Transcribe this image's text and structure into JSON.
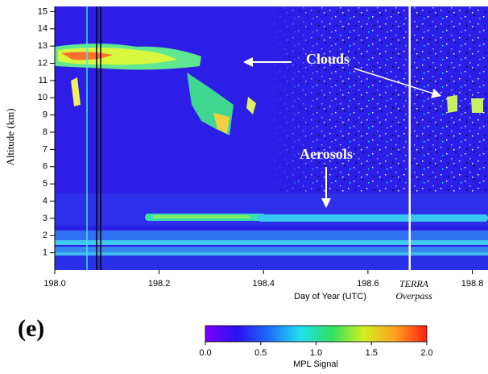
{
  "chart_data": {
    "type": "heatmap",
    "xlabel": "Day of Year  (UTC)",
    "ylabel": "Altitude (km)",
    "xlim": [
      198.0,
      198.83
    ],
    "xticks": [
      {
        "value": 198.0,
        "label": "198.0"
      },
      198.2,
      198.4,
      198.6,
      198.8
    ],
    "ylim": [
      0,
      15.3
    ],
    "yticks": [
      1,
      2,
      3,
      4,
      5,
      6,
      7,
      8,
      9,
      10,
      11,
      12,
      13,
      14,
      15
    ],
    "overpass": {
      "x": 198.68,
      "label_line1": "TERRA",
      "label_line2": "Overpass",
      "color": "#ffffff"
    },
    "annotations": {
      "clouds": "Clouds",
      "aerosols": "Aerosols"
    },
    "panel_label": "(e)",
    "colorbar": {
      "label": "MPL Signal",
      "lim": [
        0,
        2
      ],
      "ticks": [
        {
          "value": 0,
          "label": "0.0"
        },
        {
          "value": 0.5,
          "label": "0.5"
        },
        {
          "value": 1,
          "label": "1.0"
        },
        {
          "value": 1.5,
          "label": "1.5"
        },
        {
          "value": 2,
          "label": "2.0"
        }
      ],
      "colors": [
        "#7a00ff",
        "#2a10f0",
        "#1e6cf8",
        "#20e0f0",
        "#30e060",
        "#d0f020",
        "#ffa020",
        "#ff2010"
      ]
    }
  }
}
